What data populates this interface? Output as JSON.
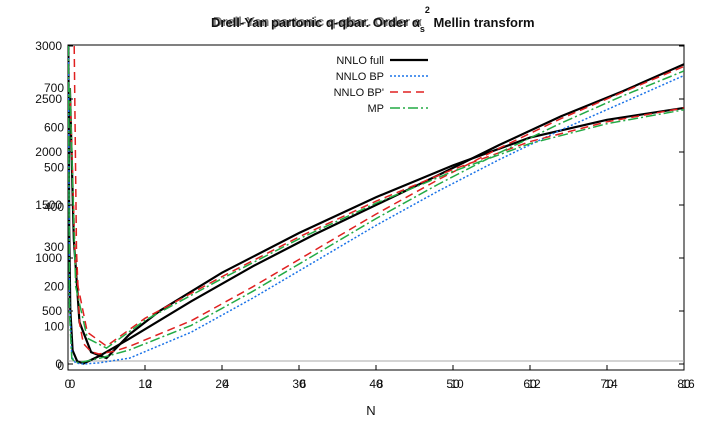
{
  "chart_data": {
    "type": "line",
    "title_a": "Drell-Yan partonic q-qbar. Order α",
    "title_b": "Drell-Yan partonic q-qbar. Order α",
    "title_sup": "2",
    "title_sub": "s",
    "title_tail": "Mellin transform",
    "xlabel": "N",
    "grid": false,
    "legend_position": "top-center",
    "axes_top": {
      "xlim": [
        0,
        80
      ],
      "ylim": [
        0,
        7000
      ],
      "xticks": [
        0,
        10,
        20,
        30,
        40,
        50,
        60,
        70,
        80
      ],
      "yticks": [
        0,
        500,
        1000,
        1500,
        2000,
        2500,
        3000
      ]
    },
    "axes_overlay": {
      "xlim": [
        0,
        16
      ],
      "ylim": [
        0,
        700
      ],
      "xticks": [
        0,
        2,
        4,
        6,
        8,
        10,
        12,
        14,
        16
      ],
      "yticks": [
        0,
        100,
        200,
        300,
        400,
        500,
        600,
        700
      ]
    },
    "series": [
      {
        "name": "NNLO full",
        "color": "#000000",
        "dash": "",
        "width": 2.2,
        "axes": "top",
        "points": [
          [
            0.05,
            7000
          ],
          [
            0.15,
            3000
          ],
          [
            0.3,
            1200
          ],
          [
            0.6,
            300
          ],
          [
            1.2,
            60
          ],
          [
            2,
            10
          ],
          [
            4,
            170
          ],
          [
            8,
            560
          ],
          [
            16,
            1380
          ],
          [
            24,
            2150
          ],
          [
            32,
            2850
          ],
          [
            40,
            3500
          ],
          [
            48,
            4150
          ],
          [
            56,
            4820
          ],
          [
            64,
            5450
          ],
          [
            72,
            6000
          ],
          [
            80,
            6600
          ]
        ]
      },
      {
        "name": "NNLO full",
        "color": "#000000",
        "dash": "",
        "width": 2.2,
        "axes": "overlay",
        "points": [
          [
            0.05,
            700
          ],
          [
            0.15,
            320
          ],
          [
            0.3,
            110
          ],
          [
            0.6,
            35
          ],
          [
            1,
            20
          ],
          [
            1.6,
            80
          ],
          [
            2.4,
            140
          ],
          [
            4,
            235
          ],
          [
            6,
            335
          ],
          [
            8,
            425
          ],
          [
            10,
            505
          ],
          [
            12,
            575
          ],
          [
            14,
            620
          ],
          [
            16,
            650
          ]
        ]
      },
      {
        "name": "NNLO BP",
        "color": "#1a73e8",
        "dash": "2,2",
        "width": 1.5,
        "axes": "top",
        "points": [
          [
            0.05,
            7000
          ],
          [
            0.2,
            1400
          ],
          [
            0.5,
            150
          ],
          [
            1,
            20
          ],
          [
            2,
            0
          ],
          [
            4,
            25
          ],
          [
            8,
            130
          ],
          [
            16,
            700
          ],
          [
            24,
            1450
          ],
          [
            32,
            2250
          ],
          [
            40,
            3050
          ],
          [
            48,
            3800
          ],
          [
            56,
            4500
          ],
          [
            64,
            5150
          ],
          [
            72,
            5750
          ],
          [
            80,
            6350
          ]
        ]
      },
      {
        "name": "NNLO BP'",
        "color": "#e02020",
        "dash": "8,5",
        "width": 1.5,
        "axes": "top",
        "points": [
          [
            0.8,
            7000
          ],
          [
            1.1,
            2500
          ],
          [
            1.5,
            900
          ],
          [
            2,
            450
          ],
          [
            3,
            270
          ],
          [
            4,
            220
          ],
          [
            6,
            280
          ],
          [
            8,
            390
          ],
          [
            16,
            950
          ],
          [
            24,
            1700
          ],
          [
            32,
            2500
          ],
          [
            40,
            3300
          ],
          [
            48,
            4050
          ],
          [
            56,
            4750
          ],
          [
            64,
            5400
          ],
          [
            72,
            5980
          ],
          [
            80,
            6550
          ]
        ]
      },
      {
        "name": "NNLO BP'",
        "color": "#e02020",
        "dash": "8,5",
        "width": 1.5,
        "axes": "overlay",
        "points": [
          [
            0.05,
            700
          ],
          [
            0.2,
            230
          ],
          [
            0.5,
            85
          ],
          [
            1,
            50
          ],
          [
            2,
            120
          ],
          [
            4,
            225
          ],
          [
            6,
            325
          ],
          [
            8,
            415
          ],
          [
            10,
            495
          ],
          [
            12,
            565
          ],
          [
            14,
            615
          ],
          [
            16,
            650
          ]
        ]
      },
      {
        "name": "MP",
        "color": "#22aa44",
        "dash": "10,3,2,3",
        "width": 1.5,
        "axes": "top",
        "points": [
          [
            0.05,
            7000
          ],
          [
            0.2,
            1100
          ],
          [
            0.5,
            120
          ],
          [
            1,
            30
          ],
          [
            2,
            50
          ],
          [
            4,
            120
          ],
          [
            8,
            310
          ],
          [
            16,
            850
          ],
          [
            24,
            1600
          ],
          [
            32,
            2400
          ],
          [
            40,
            3200
          ],
          [
            48,
            3950
          ],
          [
            56,
            4650
          ],
          [
            64,
            5300
          ],
          [
            72,
            5900
          ],
          [
            80,
            6450
          ]
        ]
      },
      {
        "name": "MP",
        "color": "#22aa44",
        "dash": "10,3,2,3",
        "width": 1.5,
        "axes": "overlay",
        "points": [
          [
            0.05,
            700
          ],
          [
            0.2,
            200
          ],
          [
            0.5,
            70
          ],
          [
            1,
            45
          ],
          [
            2,
            115
          ],
          [
            4,
            220
          ],
          [
            6,
            320
          ],
          [
            8,
            410
          ],
          [
            10,
            490
          ],
          [
            12,
            560
          ],
          [
            14,
            610
          ],
          [
            16,
            645
          ]
        ]
      }
    ],
    "legend": [
      {
        "label": "NNLO full",
        "color": "#000000",
        "dash": "",
        "width": 2.2
      },
      {
        "label": "NNLO BP",
        "color": "#1a73e8",
        "dash": "2,2",
        "width": 1.5
      },
      {
        "label": "NNLO BP'",
        "color": "#e02020",
        "dash": "8,5",
        "width": 1.5
      },
      {
        "label": "MP",
        "color": "#22aa44",
        "dash": "10,3,2,3",
        "width": 1.5
      }
    ]
  }
}
